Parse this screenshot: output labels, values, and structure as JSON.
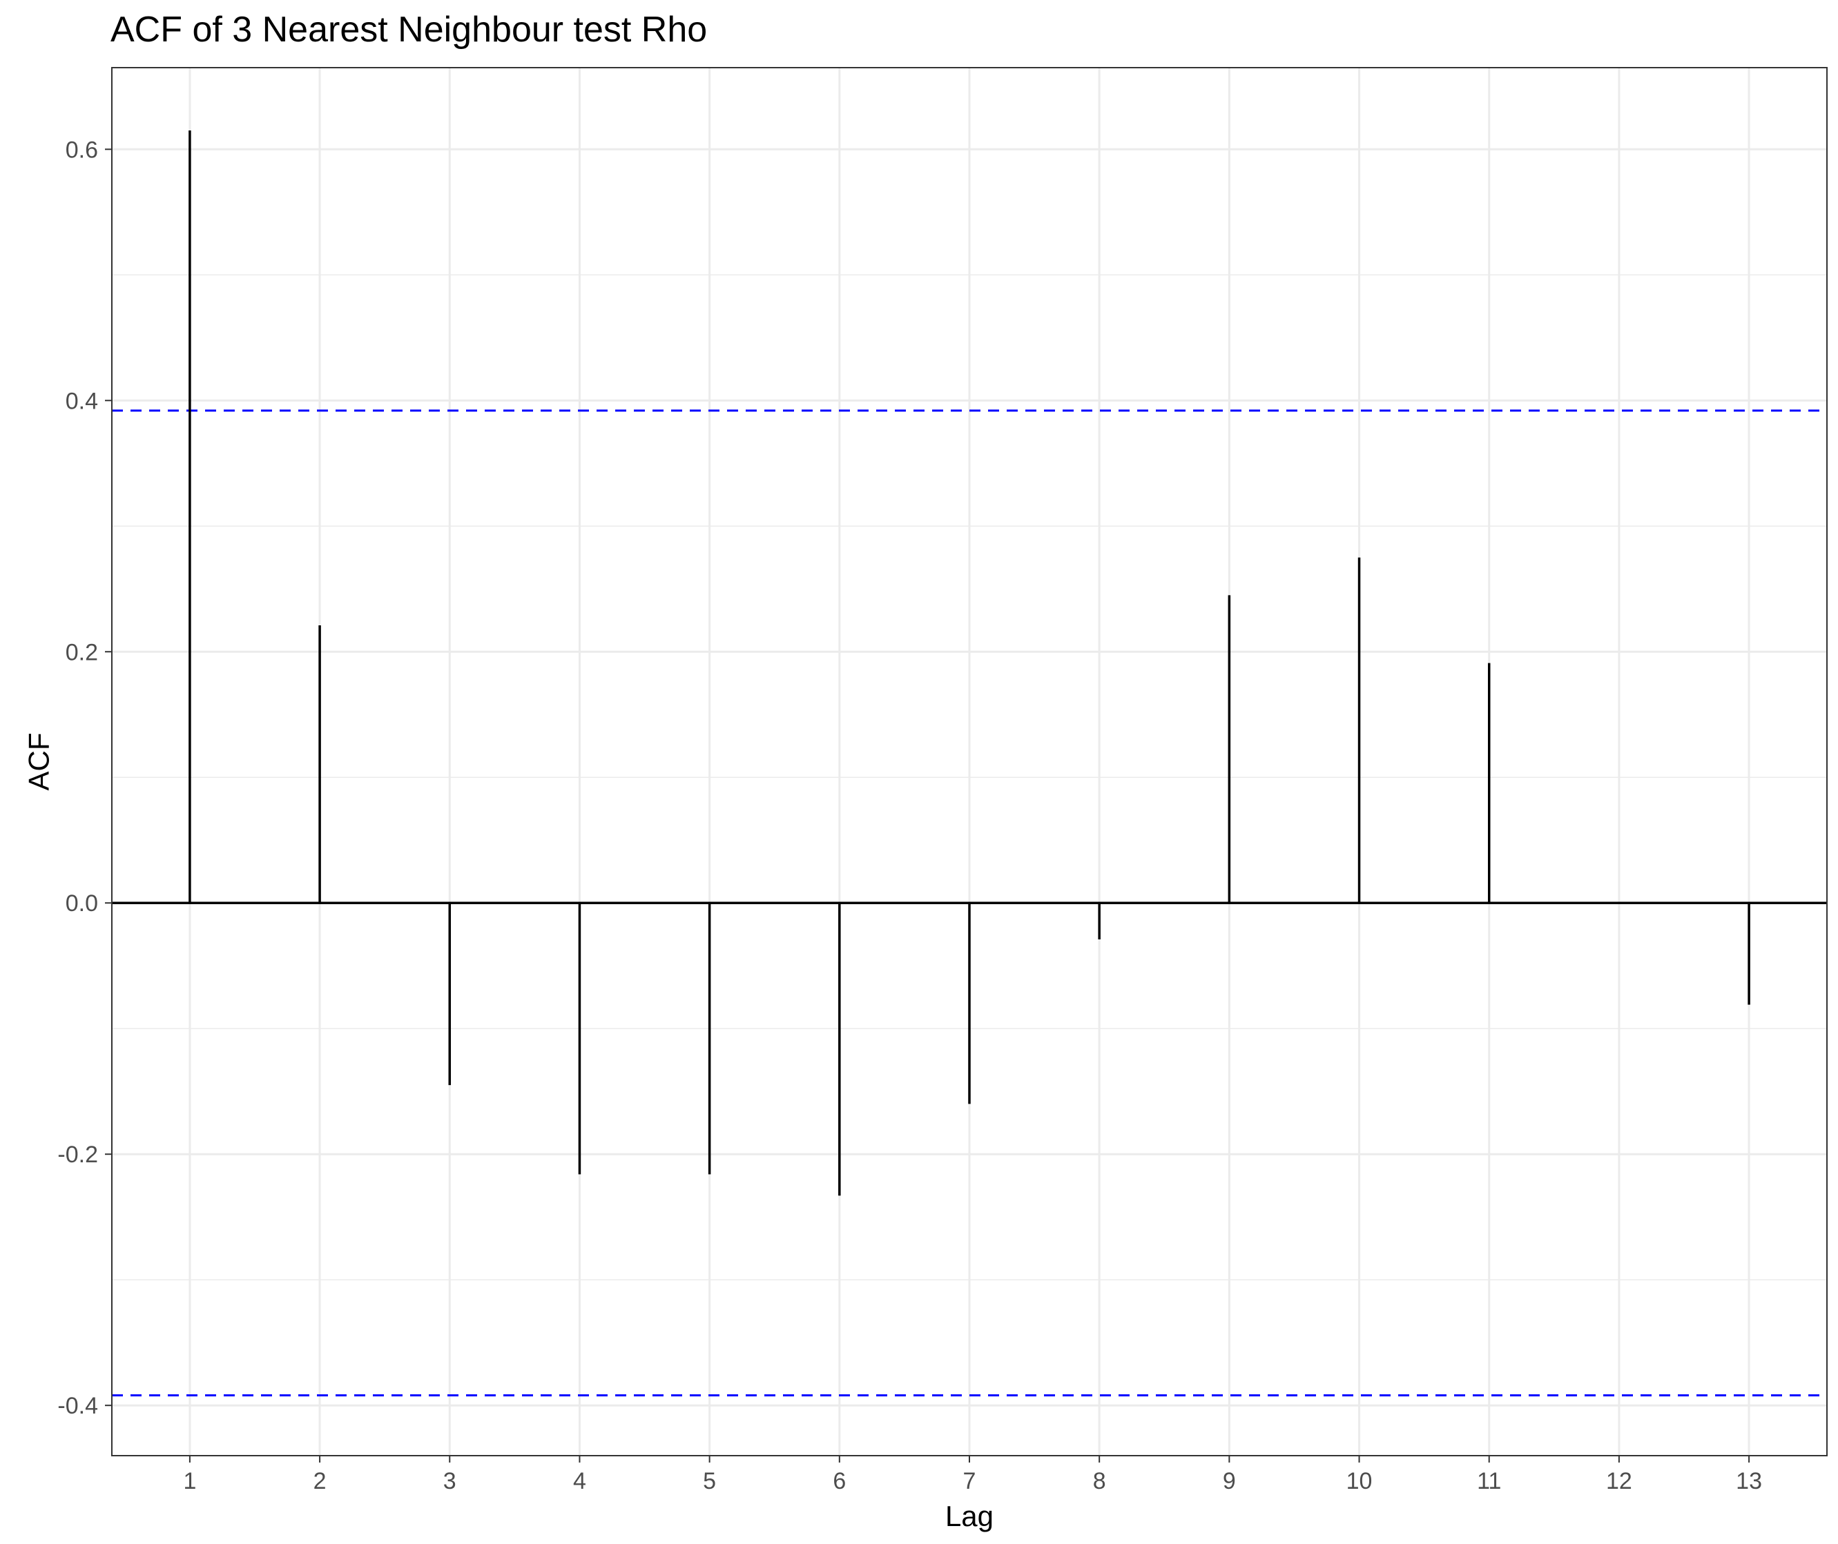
{
  "chart_data": {
    "type": "bar",
    "subtype": "acf-lollipop",
    "title": "ACF of 3 Nearest Neighbour test Rho",
    "xlabel": "Lag",
    "ylabel": "ACF",
    "x": [
      1,
      2,
      3,
      4,
      5,
      6,
      7,
      8,
      9,
      10,
      11,
      12,
      13
    ],
    "values": [
      0.615,
      0.221,
      -0.145,
      -0.216,
      -0.216,
      -0.233,
      -0.16,
      -0.029,
      0.245,
      0.275,
      0.191,
      0.0,
      -0.081
    ],
    "confidence_bounds": [
      0.392,
      -0.392
    ],
    "xlim": [
      0.4,
      13.6
    ],
    "ylim": [
      -0.44,
      0.665
    ],
    "y_ticks": [
      -0.4,
      -0.2,
      0.0,
      0.2,
      0.4,
      0.6
    ],
    "y_tick_labels": [
      "-0.4",
      "-0.2",
      "0.0",
      "0.2",
      "0.4",
      "0.6"
    ],
    "x_ticks": [
      1,
      2,
      3,
      4,
      5,
      6,
      7,
      8,
      9,
      10,
      11,
      12,
      13
    ],
    "x_tick_labels": [
      "1",
      "2",
      "3",
      "4",
      "5",
      "6",
      "7",
      "8",
      "9",
      "10",
      "11",
      "12",
      "13"
    ],
    "grid": true,
    "legend": "none",
    "colors": {
      "bars": "#000000",
      "confidence_line": "#0000ff",
      "zero_line": "#000000",
      "grid": "#ebebeb"
    }
  }
}
